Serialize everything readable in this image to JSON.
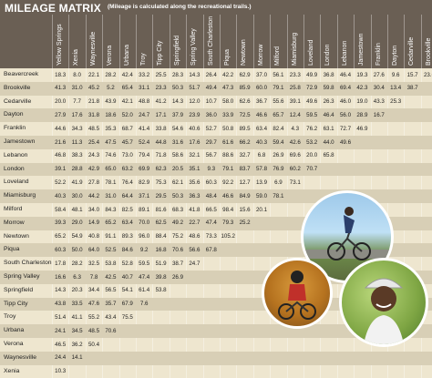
{
  "header": {
    "title": "MILEAGE MATRIX",
    "subtitle": "(Mileage is calculated along the recreational trails.)"
  },
  "columns": [
    "Yellow Springs",
    "Xenia",
    "Waynesville",
    "Verona",
    "Urbana",
    "Troy",
    "Tipp City",
    "Springfield",
    "Spring Valley",
    "South Charleston",
    "Piqua",
    "Newtown",
    "Morrow",
    "Milford",
    "Miamisburg",
    "Loveland",
    "London",
    "Lebanon",
    "Jamestown",
    "Franklin",
    "Dayton",
    "Cedarville",
    "Brookville"
  ],
  "rows": [
    {
      "city": "Beavercreek",
      "values": [
        "18.3",
        "8.0",
        "22.1",
        "28.2",
        "42.4",
        "33.2",
        "25.5",
        "28.3",
        "14.3",
        "26.4",
        "42.2",
        "62.9",
        "37.0",
        "56.1",
        "23.3",
        "49.9",
        "36.8",
        "46.4",
        "19.3",
        "27.6",
        "9.6",
        "15.7",
        "23.0"
      ]
    },
    {
      "city": "Brookville",
      "values": [
        "41.3",
        "31.0",
        "45.2",
        "5.2",
        "65.4",
        "31.1",
        "23.3",
        "50.3",
        "51.7",
        "49.4",
        "47.3",
        "85.9",
        "60.0",
        "79.1",
        "25.8",
        "72.9",
        "59.8",
        "69.4",
        "42.3",
        "30.4",
        "13.4",
        "38.7"
      ]
    },
    {
      "city": "Cedarville",
      "values": [
        "20.0",
        "7.7",
        "21.8",
        "43.9",
        "42.1",
        "48.8",
        "41.2",
        "14.3",
        "12.0",
        "10.7",
        "58.0",
        "62.6",
        "36.7",
        "55.6",
        "39.1",
        "49.6",
        "26.3",
        "46.0",
        "19.0",
        "43.3",
        "25.3"
      ]
    },
    {
      "city": "Dayton",
      "values": [
        "27.9",
        "17.6",
        "31.8",
        "18.6",
        "52.0",
        "24.7",
        "17.1",
        "37.9",
        "23.9",
        "36.0",
        "33.9",
        "72.5",
        "46.6",
        "65.7",
        "12.4",
        "59.5",
        "46.4",
        "56.0",
        "28.9",
        "16.7"
      ]
    },
    {
      "city": "Franklin",
      "values": [
        "44.6",
        "34.3",
        "48.5",
        "35.3",
        "68.7",
        "41.4",
        "33.8",
        "54.6",
        "40.6",
        "52.7",
        "50.8",
        "89.5",
        "63.4",
        "82.4",
        "4.3",
        "76.2",
        "63.1",
        "72.7",
        "46.9"
      ]
    },
    {
      "city": "Jamestown",
      "values": [
        "21.6",
        "11.3",
        "25.4",
        "47.5",
        "45.7",
        "52.4",
        "44.8",
        "31.6",
        "17.6",
        "29.7",
        "61.6",
        "66.2",
        "40.3",
        "59.4",
        "42.6",
        "53.2",
        "44.0",
        "49.6"
      ]
    },
    {
      "city": "Lebanon",
      "values": [
        "46.8",
        "38.3",
        "24.3",
        "74.6",
        "73.0",
        "79.4",
        "71.8",
        "58.6",
        "32.1",
        "56.7",
        "88.6",
        "32.7",
        "6.8",
        "26.9",
        "69.6",
        "20.0",
        "65.8"
      ]
    },
    {
      "city": "London",
      "values": [
        "39.1",
        "28.8",
        "42.9",
        "65.0",
        "63.2",
        "69.9",
        "62.3",
        "20.5",
        "35.1",
        "9.3",
        "79.1",
        "83.7",
        "57.8",
        "76.9",
        "60.2",
        "70.7"
      ]
    },
    {
      "city": "Loveland",
      "values": [
        "52.2",
        "41.9",
        "27.8",
        "78.1",
        "76.4",
        "82.9",
        "75.3",
        "62.1",
        "35.6",
        "60.3",
        "92.2",
        "12.7",
        "13.9",
        "6.9",
        "73.1"
      ]
    },
    {
      "city": "Miamisburg",
      "values": [
        "40.3",
        "30.0",
        "44.2",
        "31.0",
        "64.4",
        "37.1",
        "29.5",
        "50.3",
        "36.3",
        "48.4",
        "46.6",
        "84.9",
        "59.0",
        "78.1"
      ]
    },
    {
      "city": "Milford",
      "values": [
        "58.4",
        "48.1",
        "34.0",
        "84.3",
        "82.5",
        "89.1",
        "81.6",
        "68.3",
        "41.8",
        "66.5",
        "98.4",
        "15.6",
        "20.1"
      ]
    },
    {
      "city": "Morrow",
      "values": [
        "39.3",
        "29.0",
        "14.9",
        "65.2",
        "63.4",
        "70.0",
        "62.5",
        "49.2",
        "22.7",
        "47.4",
        "79.3",
        "25.2"
      ]
    },
    {
      "city": "Newtown",
      "values": [
        "65.2",
        "54.9",
        "40.8",
        "91.1",
        "89.3",
        "96.0",
        "88.4",
        "75.2",
        "48.6",
        "73.3",
        "105.2"
      ]
    },
    {
      "city": "Piqua",
      "values": [
        "60.3",
        "50.0",
        "64.0",
        "52.5",
        "84.6",
        "9.2",
        "16.8",
        "70.6",
        "56.6",
        "67.8"
      ]
    },
    {
      "city": "South Charleston",
      "values": [
        "17.8",
        "28.2",
        "32.5",
        "53.8",
        "52.8",
        "59.5",
        "51.9",
        "38.7",
        "24.7"
      ]
    },
    {
      "city": "Spring Valley",
      "values": [
        "16.6",
        "6.3",
        "7.8",
        "42.5",
        "40.7",
        "47.4",
        "39.8",
        "26.9"
      ]
    },
    {
      "city": "Springfield",
      "values": [
        "14.3",
        "20.3",
        "34.4",
        "56.5",
        "54.1",
        "61.4",
        "53.8"
      ]
    },
    {
      "city": "Tipp City",
      "values": [
        "43.8",
        "33.5",
        "47.6",
        "35.7",
        "67.9",
        "7.6"
      ]
    },
    {
      "city": "Troy",
      "values": [
        "51.4",
        "41.1",
        "55.2",
        "43.4",
        "75.5"
      ]
    },
    {
      "city": "Urbana",
      "values": [
        "24.1",
        "34.5",
        "48.5",
        "70.6"
      ]
    },
    {
      "city": "Verona",
      "values": [
        "46.5",
        "36.2",
        "50.4"
      ]
    },
    {
      "city": "Waynesville",
      "values": [
        "24.4",
        "14.1"
      ]
    },
    {
      "city": "Xenia",
      "values": [
        "10.3"
      ]
    }
  ],
  "colors": {
    "header_bg": "#6a5f54",
    "row_light": "#eee6cf",
    "row_dark": "#d8cfb6",
    "text": "#222222"
  },
  "photos": [
    "cyclist-on-trail-photo",
    "mountain-biker-photo",
    "smiling-cyclist-photo"
  ]
}
